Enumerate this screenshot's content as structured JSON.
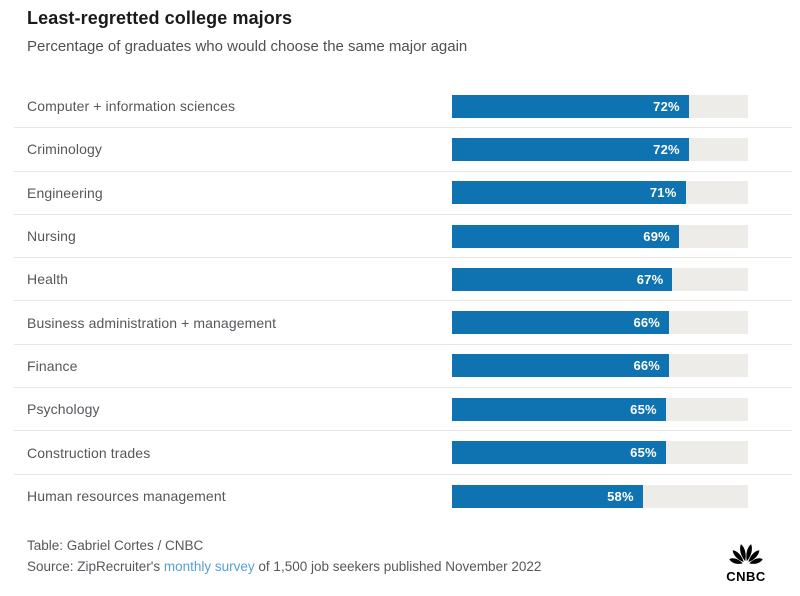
{
  "header": {
    "title": "Least-regretted college majors",
    "subtitle": "Percentage of graduates who would choose the same major again"
  },
  "chart_data": {
    "type": "bar",
    "orientation": "horizontal",
    "title": "Least-regretted college majors",
    "subtitle": "Percentage of graduates who would choose the same major again",
    "categories": [
      "Computer + information sciences",
      "Criminology",
      "Engineering",
      "Nursing",
      "Health",
      "Business administration + management",
      "Finance",
      "Psychology",
      "Construction trades",
      "Human resources management"
    ],
    "values": [
      72,
      72,
      71,
      69,
      67,
      66,
      66,
      65,
      65,
      58
    ],
    "value_suffix": "%",
    "xlim": [
      0,
      90
    ],
    "grid": false,
    "legend": "none",
    "value_labels": "inside-end",
    "bar_color": "#0f72b1",
    "track_color": "#edece9"
  },
  "footer": {
    "credit": "Table: Gabriel Cortes / CNBC",
    "source_prefix": "Source: ZipRecruiter's ",
    "source_link": "monthly survey",
    "source_suffix": " of 1,500 job seekers published November 2022",
    "link_color": "#55a0d7",
    "logo_text": "CNBC"
  }
}
